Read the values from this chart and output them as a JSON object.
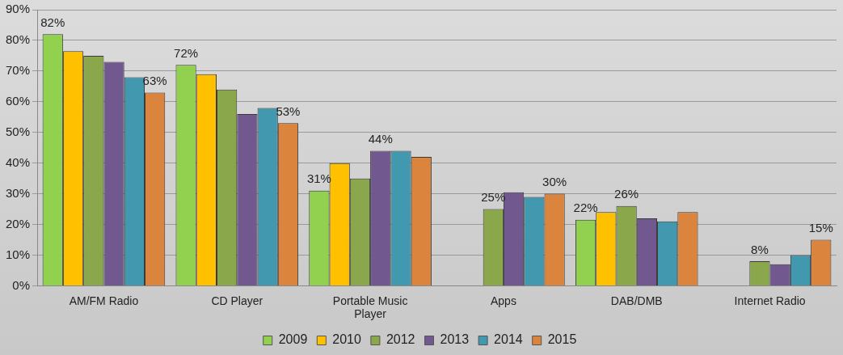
{
  "chart_data": {
    "type": "bar",
    "categories": [
      "AM/FM Radio",
      "CD Player",
      "Portable Music Player",
      "Apps",
      "DAB/DMB",
      "Internet Radio"
    ],
    "series": [
      {
        "name": "2009",
        "color": "#92d050",
        "values": [
          82,
          72,
          31,
          null,
          21.5,
          null
        ],
        "value_labels": [
          "82%",
          "72%",
          "31%",
          null,
          "22%",
          null
        ]
      },
      {
        "name": "2010",
        "color": "#ffc000",
        "values": [
          76.5,
          69,
          40,
          null,
          24,
          null
        ]
      },
      {
        "name": "2012",
        "color": "#8aa84b",
        "values": [
          75,
          64,
          35,
          25,
          26,
          8
        ],
        "value_labels": [
          null,
          null,
          null,
          "25%",
          "26%",
          "8%"
        ]
      },
      {
        "name": "2013",
        "color": "#71588f",
        "values": [
          73,
          56,
          44,
          30.5,
          22,
          7
        ],
        "value_labels": [
          null,
          null,
          "44%",
          null,
          null,
          null
        ]
      },
      {
        "name": "2014",
        "color": "#4198af",
        "values": [
          68,
          58,
          44,
          29,
          21,
          10
        ]
      },
      {
        "name": "2015",
        "color": "#db843d",
        "values": [
          63,
          53,
          42,
          30,
          24,
          15
        ],
        "value_labels": [
          "63%",
          "53%",
          null,
          "30%",
          null,
          "15%"
        ]
      }
    ],
    "ylim": [
      0,
      90
    ],
    "yticks": [
      {
        "value": 0,
        "label": "0%"
      },
      {
        "value": 10,
        "label": "10%"
      },
      {
        "value": 20,
        "label": "20%"
      },
      {
        "value": 30,
        "label": "30%"
      },
      {
        "value": 40,
        "label": "40%"
      },
      {
        "value": 50,
        "label": "50%"
      },
      {
        "value": 60,
        "label": "60%"
      },
      {
        "value": 70,
        "label": "70%"
      },
      {
        "value": 80,
        "label": "80%"
      },
      {
        "value": 90,
        "label": "90%"
      }
    ],
    "grid": "y",
    "legend": "bottom"
  }
}
